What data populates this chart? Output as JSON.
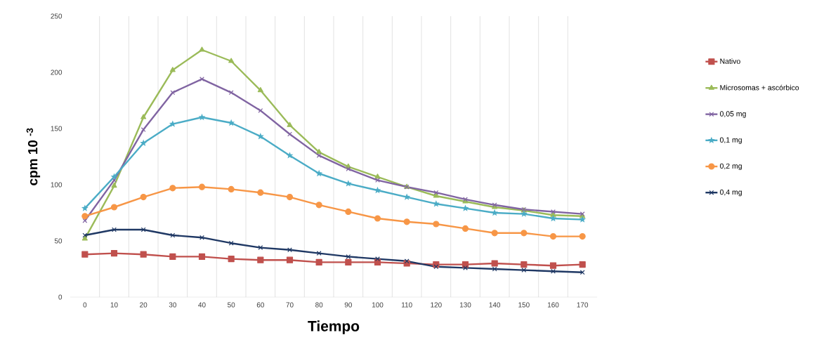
{
  "chart_data": {
    "type": "line",
    "xlabel": "Tiempo",
    "ylabel": "cpm 10 $^{-3}$",
    "categories": [
      "0",
      "10",
      "20",
      "30",
      "40",
      "50",
      "60",
      "70",
      "80",
      "90",
      "100",
      "110",
      "120",
      "130",
      "140",
      "150",
      "160",
      "170"
    ],
    "ylim": [
      0,
      250
    ],
    "yticks": [
      0,
      50,
      100,
      150,
      200,
      250
    ],
    "grid": "x",
    "legend": "right",
    "series": [
      {
        "name": "Nativo",
        "color": "#c0504d",
        "marker": "square",
        "values": [
          38,
          39,
          38,
          36,
          36,
          34,
          33,
          33,
          31,
          31,
          31,
          30,
          29,
          29,
          30,
          29,
          28,
          29
        ]
      },
      {
        "name": "Microsomas + ascórbico",
        "color": "#9bbb59",
        "marker": "triangle",
        "values": [
          52,
          99,
          160,
          202,
          220,
          210,
          184,
          153,
          129,
          116,
          107,
          98,
          90,
          85,
          80,
          77,
          73,
          72
        ]
      },
      {
        "name": "0,05 mg",
        "color": "#8064a2",
        "marker": "cross",
        "values": [
          68,
          104,
          149,
          182,
          194,
          182,
          166,
          145,
          126,
          114,
          104,
          98,
          93,
          87,
          82,
          78,
          76,
          74
        ]
      },
      {
        "name": "0,1 mg",
        "color": "#4bacc6",
        "marker": "star",
        "values": [
          79,
          107,
          137,
          154,
          160,
          155,
          143,
          126,
          110,
          101,
          95,
          89,
          83,
          79,
          75,
          74,
          70,
          69
        ]
      },
      {
        "name": "0,2 mg",
        "color": "#f79646",
        "marker": "circle",
        "values": [
          72,
          80,
          89,
          97,
          98,
          96,
          93,
          89,
          82,
          76,
          70,
          67,
          65,
          61,
          57,
          57,
          54,
          54
        ]
      },
      {
        "name": "0,4 mg",
        "color": "#1f3864",
        "marker": "cross",
        "values": [
          55,
          60,
          60,
          55,
          53,
          48,
          44,
          42,
          39,
          36,
          34,
          32,
          27,
          26,
          25,
          24,
          23,
          22
        ]
      }
    ]
  }
}
